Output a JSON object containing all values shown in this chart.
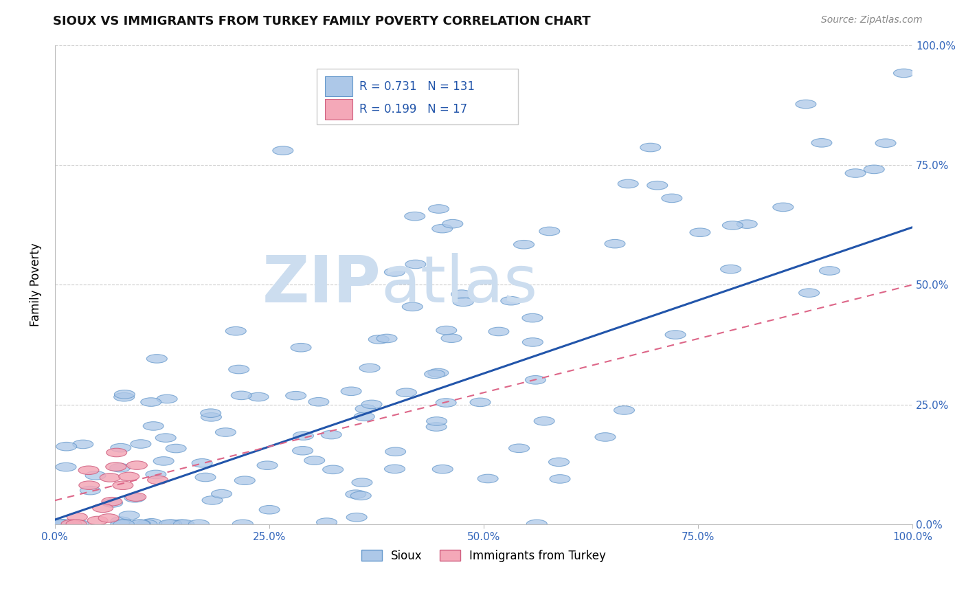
{
  "title": "SIOUX VS IMMIGRANTS FROM TURKEY FAMILY POVERTY CORRELATION CHART",
  "source": "Source: ZipAtlas.com",
  "ylabel": "Family Poverty",
  "xlabel": "",
  "xlim": [
    0,
    1
  ],
  "ylim": [
    0,
    1
  ],
  "xticks": [
    0.0,
    0.25,
    0.5,
    0.75,
    1.0
  ],
  "yticks": [
    0.0,
    0.25,
    0.5,
    0.75,
    1.0
  ],
  "xtick_labels": [
    "0.0%",
    "25.0%",
    "50.0%",
    "75.0%",
    "100.0%"
  ],
  "ytick_labels_right": [
    "0.0%",
    "25.0%",
    "50.0%",
    "75.0%",
    "100.0%"
  ],
  "sioux_color": "#adc8e8",
  "sioux_edge_color": "#6699cc",
  "turkey_color": "#f4a8b8",
  "turkey_edge_color": "#d06080",
  "sioux_line_color": "#2255aa",
  "turkey_line_color": "#dd6688",
  "R_sioux": 0.731,
  "N_sioux": 131,
  "R_turkey": 0.199,
  "N_turkey": 17,
  "watermark_zip": "ZIP",
  "watermark_atlas": "atlas",
  "watermark_color": "#ccddef",
  "grid_color": "#cccccc",
  "legend_label_sioux": "Sioux",
  "legend_label_turkey": "Immigrants from Turkey",
  "sioux_line_x0": 0.0,
  "sioux_line_y0": 0.01,
  "sioux_line_x1": 1.0,
  "sioux_line_y1": 0.62,
  "turkey_line_x0": 0.0,
  "turkey_line_y0": 0.05,
  "turkey_line_x1": 1.0,
  "turkey_line_y1": 0.5,
  "title_fontsize": 13,
  "source_fontsize": 10,
  "tick_fontsize": 11,
  "ylabel_fontsize": 12
}
